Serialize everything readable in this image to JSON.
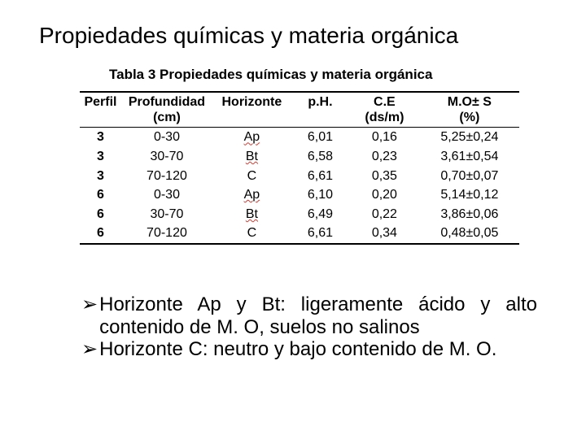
{
  "title": "Propiedades químicas y materia orgánica",
  "table": {
    "caption": "Tabla 3 Propiedades químicas y materia orgánica",
    "columns": [
      {
        "label": "Perfil",
        "unit": ""
      },
      {
        "label": "Profundidad",
        "unit": "(cm)"
      },
      {
        "label": "Horizonte",
        "unit": ""
      },
      {
        "label": "p.H.",
        "unit": ""
      },
      {
        "label": "C.E",
        "unit": "(ds/m)"
      },
      {
        "label": "M.O± S",
        "unit": "(%)"
      }
    ],
    "rows": [
      {
        "perfil": "3",
        "profundidad": "0-30",
        "horizonte": "Ap",
        "ph": "6,01",
        "ce": "0,16",
        "mo": "5,25±0,24",
        "hz_underlined": true
      },
      {
        "perfil": "3",
        "profundidad": "30-70",
        "horizonte": "Bt",
        "ph": "6,58",
        "ce": "0,23",
        "mo": "3,61±0,54",
        "hz_underlined": true
      },
      {
        "perfil": "3",
        "profundidad": "70-120",
        "horizonte": "C",
        "ph": "6,61",
        "ce": "0,35",
        "mo": "0,70±0,07",
        "hz_underlined": false
      },
      {
        "perfil": "6",
        "profundidad": "0-30",
        "horizonte": "Ap",
        "ph": "6,10",
        "ce": "0,20",
        "mo": "5,14±0,12",
        "hz_underlined": true
      },
      {
        "perfil": "6",
        "profundidad": "30-70",
        "horizonte": "Bt",
        "ph": "6,49",
        "ce": "0,22",
        "mo": "3,86±0,06",
        "hz_underlined": true
      },
      {
        "perfil": "6",
        "profundidad": "70-120",
        "horizonte": "C",
        "ph": "6,61",
        "ce": "0,34",
        "mo": "0,48±0,05",
        "hz_underlined": false
      }
    ],
    "widths": [
      "50px",
      "110px",
      "95px",
      "70px",
      "85px",
      "120px"
    ],
    "colors": {
      "text": "#000000",
      "border": "#000000",
      "underline": "#d43a2f",
      "background": "#ffffff"
    },
    "font": {
      "body_size_pt": 12,
      "header_weight": 700
    }
  },
  "notes": {
    "bullet": "➢",
    "items": [
      "Horizonte Ap y Bt: ligeramente ácido y alto contenido de M. O, suelos no salinos",
      "Horizonte C: neutro y bajo contenido de M. O."
    ]
  }
}
